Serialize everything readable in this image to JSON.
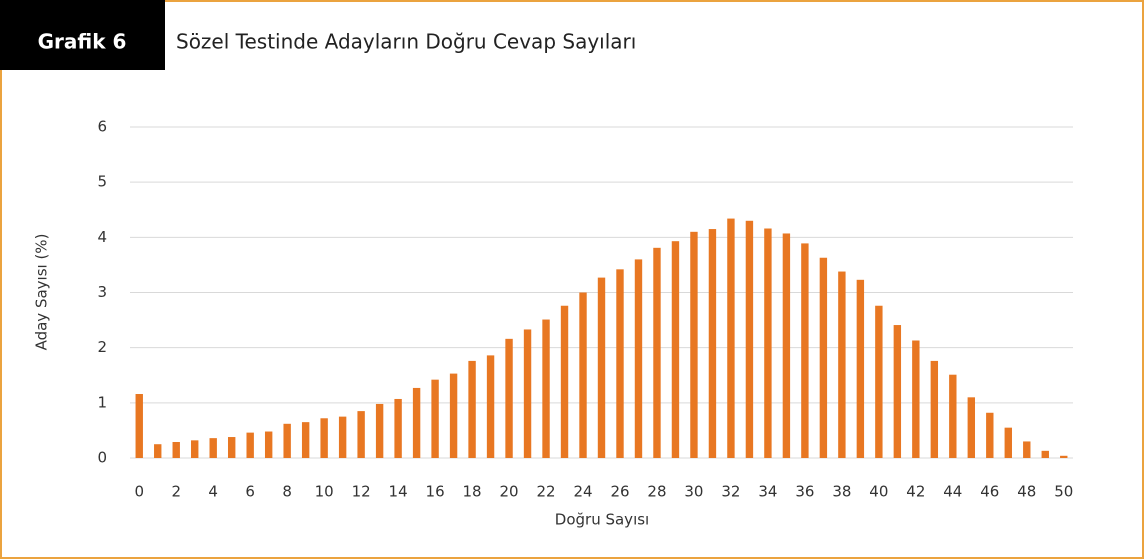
{
  "badge": "Grafik 6",
  "chart_data": {
    "type": "bar",
    "title": "Sözel Testinde Adayların Doğru Cevap Sayıları",
    "xlabel": "Doğru Sayısı",
    "ylabel": "Aday Sayısı (%)",
    "categories": [
      "0",
      null,
      "2",
      null,
      "4",
      null,
      "6",
      null,
      "8",
      null,
      "10",
      null,
      "12",
      null,
      "14",
      null,
      "16",
      null,
      "18",
      null,
      "20",
      null,
      "22",
      null,
      "24",
      null,
      "26",
      null,
      "28",
      null,
      "30",
      null,
      "32",
      null,
      "34",
      null,
      "36",
      null,
      "38",
      null,
      "40",
      null,
      "42",
      null,
      "44",
      null,
      "46",
      null,
      "48",
      null,
      "50"
    ],
    "values": [
      1.16,
      0.25,
      0.29,
      0.32,
      0.36,
      0.38,
      0.46,
      0.48,
      0.62,
      0.65,
      0.72,
      0.75,
      0.85,
      0.98,
      1.07,
      1.27,
      1.42,
      1.53,
      1.76,
      1.86,
      2.16,
      2.33,
      2.51,
      2.76,
      3.0,
      3.27,
      3.42,
      3.6,
      3.81,
      3.93,
      4.1,
      4.15,
      4.34,
      4.3,
      4.16,
      4.07,
      3.89,
      3.63,
      3.38,
      3.23,
      2.76,
      2.41,
      2.13,
      1.76,
      1.51,
      1.1,
      0.82,
      0.55,
      0.3,
      0.13,
      0.04
    ],
    "color": "#e87722",
    "ylim": [
      0,
      6
    ],
    "yticks": [
      0,
      1,
      2,
      3,
      4,
      5,
      6
    ],
    "grid": true
  }
}
